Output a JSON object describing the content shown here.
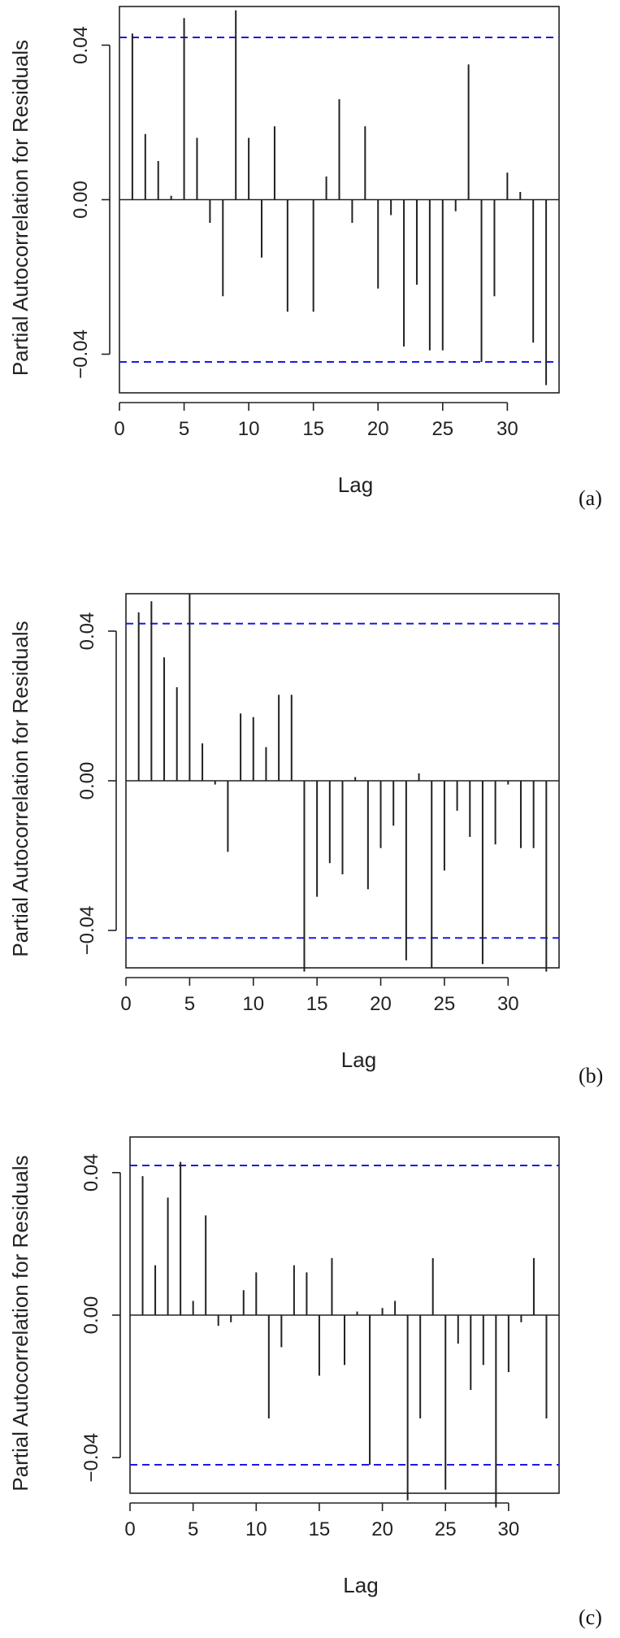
{
  "chart_data": [
    {
      "panel": "a",
      "panel_label": "(a)",
      "type": "bar",
      "xlabel": "Lag",
      "ylabel": "Partial Autocorrelation for Residuals",
      "xlim": [
        0,
        34
      ],
      "ylim": [
        -0.05,
        0.05
      ],
      "xticks": [
        "0",
        "5",
        "10",
        "15",
        "20",
        "25",
        "30"
      ],
      "yticks": [
        "-0.04",
        "0.00",
        "0.04"
      ],
      "confidence_bounds": [
        0.042,
        -0.042
      ],
      "bound_color": "#1a1ae6",
      "x": [
        1,
        2,
        3,
        4,
        5,
        6,
        7,
        8,
        9,
        10,
        11,
        12,
        13,
        14,
        15,
        16,
        17,
        18,
        19,
        20,
        21,
        22,
        23,
        24,
        25,
        26,
        27,
        28,
        29,
        30,
        31,
        32,
        33
      ],
      "values": [
        0.043,
        0.017,
        0.01,
        0.001,
        0.047,
        0.016,
        -0.006,
        -0.025,
        0.049,
        0.016,
        -0.015,
        0.019,
        -0.029,
        0.0,
        -0.029,
        0.006,
        0.026,
        -0.006,
        0.019,
        -0.023,
        -0.004,
        -0.038,
        -0.022,
        -0.039,
        -0.039,
        -0.003,
        0.035,
        -0.042,
        -0.025,
        0.007,
        0.002,
        -0.037,
        -0.048
      ]
    },
    {
      "panel": "b",
      "panel_label": "(b)",
      "type": "bar",
      "xlabel": "Lag",
      "ylabel": "Partial Autocorrelation for Residuals",
      "xlim": [
        0,
        34
      ],
      "ylim": [
        -0.05,
        0.05
      ],
      "xticks": [
        "0",
        "5",
        "10",
        "15",
        "20",
        "25",
        "30"
      ],
      "yticks": [
        "-0.04",
        "0.00",
        "0.04"
      ],
      "confidence_bounds": [
        0.042,
        -0.042
      ],
      "bound_color": "#1a1ae6",
      "x": [
        1,
        2,
        3,
        4,
        5,
        6,
        7,
        8,
        9,
        10,
        11,
        12,
        13,
        14,
        15,
        16,
        17,
        18,
        19,
        20,
        21,
        22,
        23,
        24,
        25,
        26,
        27,
        28,
        29,
        30,
        31,
        32,
        33
      ],
      "values": [
        0.045,
        0.048,
        0.033,
        0.025,
        0.05,
        0.01,
        -0.001,
        -0.019,
        0.018,
        0.017,
        0.009,
        0.023,
        0.023,
        -0.051,
        -0.031,
        -0.022,
        -0.025,
        0.001,
        -0.029,
        -0.018,
        -0.012,
        -0.048,
        0.002,
        -0.05,
        -0.024,
        -0.008,
        -0.015,
        -0.049,
        -0.017,
        -0.001,
        -0.018,
        -0.018,
        -0.051
      ]
    },
    {
      "panel": "c",
      "panel_label": "(c)",
      "type": "bar",
      "xlabel": "Lag",
      "ylabel": "Partial Autocorrelation for Residuals",
      "xlim": [
        0,
        34
      ],
      "ylim": [
        -0.05,
        0.05
      ],
      "xticks": [
        "0",
        "5",
        "10",
        "15",
        "20",
        "25",
        "30"
      ],
      "yticks": [
        "-0.04",
        "0.00",
        "0.04"
      ],
      "confidence_bounds": [
        0.042,
        -0.042
      ],
      "bound_color": "#1a1ae6",
      "x": [
        1,
        2,
        3,
        4,
        5,
        6,
        7,
        8,
        9,
        10,
        11,
        12,
        13,
        14,
        15,
        16,
        17,
        18,
        19,
        20,
        21,
        22,
        23,
        24,
        25,
        26,
        27,
        28,
        29,
        30,
        31,
        32,
        33
      ],
      "values": [
        0.039,
        0.014,
        0.033,
        0.043,
        0.004,
        0.028,
        -0.003,
        -0.002,
        0.007,
        0.012,
        -0.029,
        -0.009,
        0.014,
        0.012,
        -0.017,
        0.016,
        -0.014,
        0.001,
        -0.042,
        0.002,
        0.004,
        -0.052,
        -0.029,
        0.016,
        -0.049,
        -0.008,
        -0.021,
        -0.014,
        -0.054,
        -0.016,
        -0.002,
        0.016,
        -0.029
      ]
    }
  ]
}
